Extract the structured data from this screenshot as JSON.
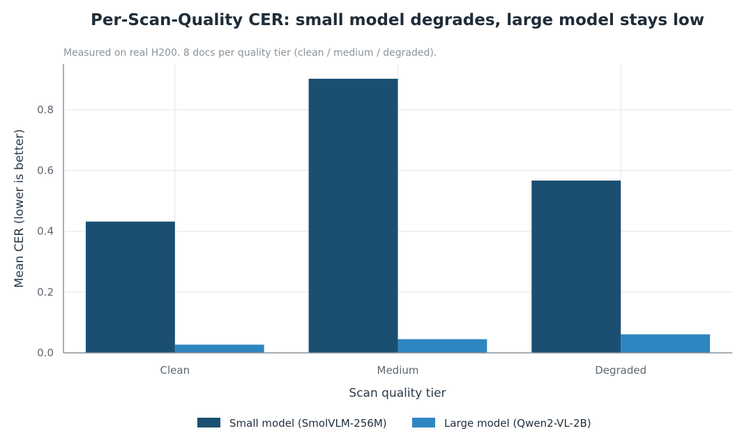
{
  "chart_data": {
    "type": "bar",
    "title": "Per-Scan-Quality CER: small model degrades, large model stays low",
    "subtitle": "Measured on real H200. 8 docs per quality tier (clean / medium / degraded).",
    "xlabel": "Scan quality tier",
    "ylabel": "Mean CER (lower is better)",
    "categories": [
      "Clean",
      "Medium",
      "Degraded"
    ],
    "series": [
      {
        "name": "Small model (SmolVLM-256M)",
        "color": "#1b4f72",
        "values": [
          0.432,
          0.902,
          0.567
        ]
      },
      {
        "name": "Large model (Qwen2-VL-2B)",
        "color": "#2e86c1",
        "values": [
          0.027,
          0.045,
          0.061
        ]
      }
    ],
    "yticks": [
      "0.0",
      "0.2",
      "0.4",
      "0.6",
      "0.8"
    ],
    "ylim": [
      0,
      0.95
    ],
    "grid": true,
    "legend_position": "bottom-center"
  }
}
